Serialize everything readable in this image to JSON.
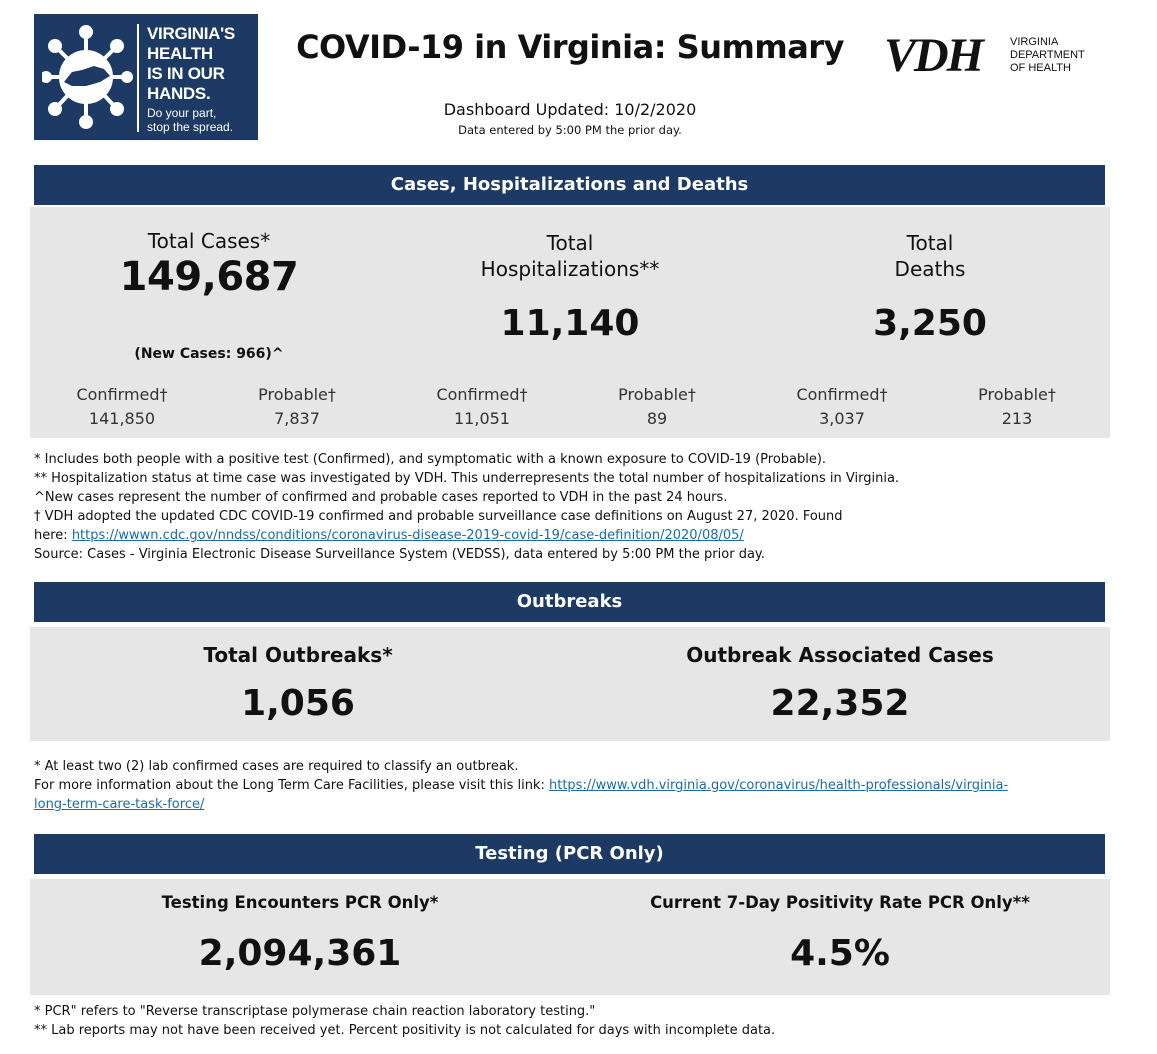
{
  "header": {
    "logo": {
      "lines": [
        "VIRGINIA'S",
        "HEALTH",
        "IS IN OUR",
        "HANDS."
      ],
      "tagline": [
        "Do your part,",
        "stop the spread."
      ],
      "icon": "virus-icon"
    },
    "title": "COVID-19 in Virginia: Summary",
    "agency_logo": {
      "letters": "VDH",
      "lines": [
        "VIRGINIA",
        "DEPARTMENT",
        "OF HEALTH"
      ]
    },
    "updated": "Dashboard Updated: 10/2/2020",
    "updated_note": "Data entered by 5:00 PM the prior day."
  },
  "cases_section": {
    "title": "Cases, Hospitalizations and Deaths",
    "cases": {
      "label": "Total Cases*",
      "value": "149,687",
      "new_cases": "(New Cases: 966)^",
      "confirmed_label": "Confirmed†",
      "confirmed": "141,850",
      "probable_label": "Probable†",
      "probable": "7,837"
    },
    "hospitalizations": {
      "label_line1": "Total",
      "label_line2": "Hospitalizations**",
      "value": "11,140",
      "confirmed_label": "Confirmed†",
      "confirmed": "11,051",
      "probable_label": "Probable†",
      "probable": "89"
    },
    "deaths": {
      "label_line1": "Total",
      "label_line2": "Deaths",
      "value": "3,250",
      "confirmed_label": "Confirmed†",
      "confirmed": "3,037",
      "probable_label": "Probable†",
      "probable": "213"
    },
    "notes": [
      "* Includes both people with a positive test (Confirmed), and symptomatic with a known exposure to COVID-19 (Probable).",
      "** Hospitalization status at time case was investigated by VDH. This underrepresents the total number of hospitalizations in Virginia.",
      "^New cases represent the number of confirmed and probable cases reported to VDH in the past 24 hours.",
      "† VDH adopted the updated CDC COVID-19 confirmed and probable surveillance case definitions on August 27, 2020. Found"
    ],
    "note_here_prefix": "here: ",
    "note_here_link": "https://wwwn.cdc.gov/nndss/conditions/coronavirus-disease-2019-covid-19/case-definition/2020/08/05/",
    "note_source": "Source:  Cases - Virginia Electronic Disease Surveillance System (VEDSS), data entered by 5:00 PM the prior day."
  },
  "outbreaks_section": {
    "title": "Outbreaks",
    "total_label": "Total Outbreaks*",
    "total_value": "1,056",
    "associated_label": "Outbreak Associated Cases",
    "associated_value": "22,352",
    "note1": "* At least two (2) lab confirmed cases are required to classify an outbreak.",
    "note2_prefix": "For more information about the Long Term Care Facilities, please visit this link: ",
    "note2_link_part1": "https://www.vdh.virginia.gov/coronavirus/health-professionals/virginia-",
    "note2_link_part2": "long-term-care-task-force/"
  },
  "testing_section": {
    "title": "Testing (PCR Only)",
    "encounters_label": "Testing Encounters PCR Only*",
    "encounters_value": "2,094,361",
    "positivity_label": "Current 7-Day Positivity Rate PCR Only**",
    "positivity_value": "4.5%",
    "note1": "* PCR\" refers to \"Reverse transcriptase polymerase chain reaction laboratory testing.\"",
    "note2": "** Lab reports may not have been received yet. Percent positivity is not calculated for days with incomplete data."
  },
  "colors": {
    "navy": "#1d3a64",
    "panel_gray": "#e6e6e6",
    "link_blue": "#1f6aa5"
  }
}
